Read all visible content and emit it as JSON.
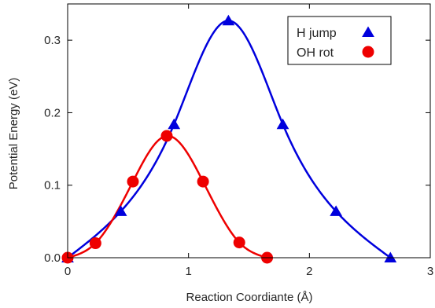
{
  "chart_data": {
    "type": "line",
    "title": "",
    "xlabel": "Reaction Coordiante (Å)",
    "ylabel": "Potential Energy (eV)",
    "xlim": [
      0,
      3
    ],
    "ylim": [
      0,
      0.35
    ],
    "x_ticks": [
      0,
      1,
      2,
      3
    ],
    "y_ticks": [
      0.0,
      0.1,
      0.2,
      0.3
    ],
    "x_tick_labels": [
      "0",
      "1",
      "2",
      "3"
    ],
    "y_tick_labels": [
      "0.0",
      "0.1",
      "0.2",
      "0.3"
    ],
    "grid": false,
    "legend_position": "top-right",
    "series": [
      {
        "name": "H jump",
        "color": "#0000dd",
        "marker": "triangle",
        "x": [
          0.0,
          0.44,
          0.88,
          1.33,
          1.78,
          2.22,
          2.67
        ],
        "y": [
          0.0,
          0.064,
          0.184,
          0.327,
          0.184,
          0.064,
          0.0
        ]
      },
      {
        "name": "OH rot",
        "color": "#ee0000",
        "marker": "circle",
        "x": [
          0.0,
          0.23,
          0.54,
          0.82,
          1.12,
          1.42,
          1.65
        ],
        "y": [
          0.0,
          0.02,
          0.105,
          0.168,
          0.105,
          0.021,
          0.0
        ]
      }
    ]
  }
}
